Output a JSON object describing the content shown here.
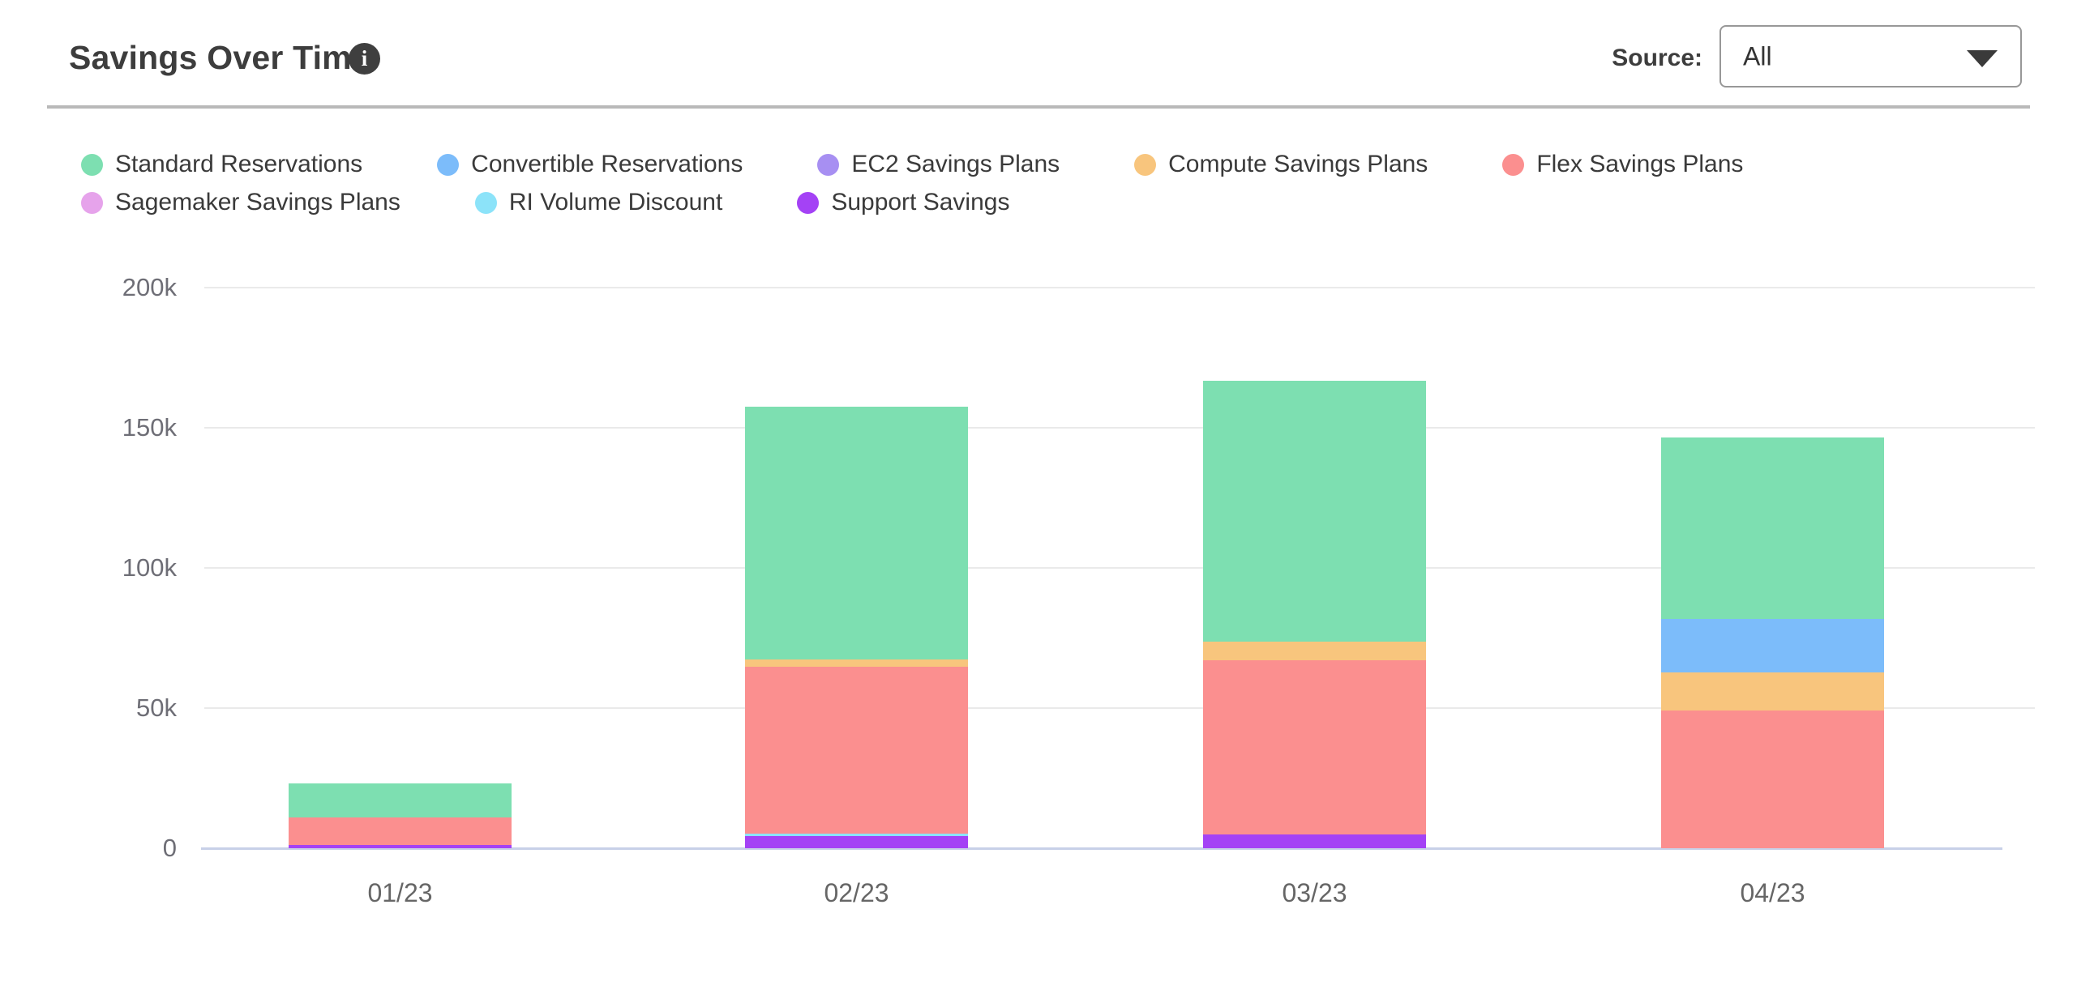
{
  "header": {
    "title": "Savings Over Time",
    "info_icon_glyph": "i",
    "source_label": "Source:",
    "source_value": "All"
  },
  "legend": {
    "rows": [
      [
        {
          "label": "Standard Reservations",
          "color": "#7DDFB1"
        },
        {
          "label": "Convertible Reservations",
          "color": "#7CBCFA"
        },
        {
          "label": "EC2 Savings Plans",
          "color": "#A78FF2"
        },
        {
          "label": "Compute Savings Plans",
          "color": "#F8C57D"
        },
        {
          "label": "Flex Savings Plans",
          "color": "#FB8F8F"
        }
      ],
      [
        {
          "label": "Sagemaker Savings Plans",
          "color": "#E6A3EB"
        },
        {
          "label": "RI Volume Discount",
          "color": "#8CE3F9"
        },
        {
          "label": "Support Savings",
          "color": "#A442F5"
        }
      ]
    ]
  },
  "chart_data": {
    "type": "bar",
    "stacked": true,
    "title": "Savings Over Time",
    "categories": [
      "01/23",
      "02/23",
      "03/23",
      "04/23"
    ],
    "series": [
      {
        "name": "Support Savings",
        "color": "#A442F5",
        "values": [
          1200,
          4300,
          4900,
          0
        ]
      },
      {
        "name": "RI Volume Discount",
        "color": "#8CE3F9",
        "values": [
          0,
          900,
          0,
          0
        ]
      },
      {
        "name": "Flex Savings Plans",
        "color": "#FB8F8F",
        "values": [
          9800,
          59600,
          62200,
          49200
        ]
      },
      {
        "name": "Compute Savings Plans",
        "color": "#F8C57D",
        "values": [
          0,
          2600,
          6600,
          13600
        ]
      },
      {
        "name": "Convertible Reservations",
        "color": "#7CBCFA",
        "values": [
          0,
          0,
          0,
          19100
        ]
      },
      {
        "name": "EC2 Savings Plans",
        "color": "#A78FF2",
        "values": [
          0,
          0,
          0,
          0
        ]
      },
      {
        "name": "Sagemaker Savings Plans",
        "color": "#E6A3EB",
        "values": [
          0,
          0,
          0,
          0
        ]
      },
      {
        "name": "Standard Reservations",
        "color": "#7DDFB1",
        "values": [
          12200,
          90200,
          93100,
          64500
        ]
      }
    ],
    "stack_order": "bottom-to-top",
    "totals": [
      23200,
      157600,
      166800,
      146400
    ],
    "ylim": [
      0,
      200000
    ],
    "yticks": [
      {
        "value": 0,
        "label": "0"
      },
      {
        "value": 50000,
        "label": "50k"
      },
      {
        "value": 100000,
        "label": "100k"
      },
      {
        "value": 150000,
        "label": "150k"
      },
      {
        "value": 200000,
        "label": "200k"
      }
    ],
    "xlabel": "",
    "ylabel": "",
    "grid": true,
    "legend_position": "top"
  }
}
